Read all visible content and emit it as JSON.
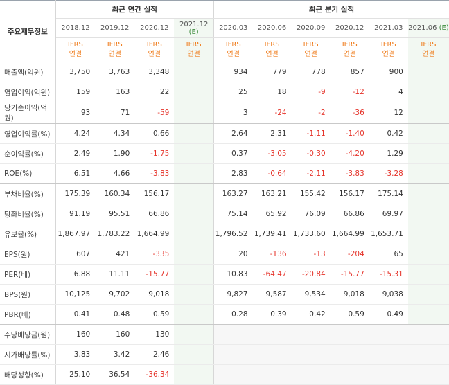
{
  "header": {
    "corner_label": "주요재무정보",
    "annual_title": "최근 연간 실적",
    "quarter_title": "최근 분기 실적",
    "annual_periods": [
      "2018.12",
      "2019.12",
      "2020.12"
    ],
    "annual_estimate": {
      "period": "2021.12",
      "mark": "(E)"
    },
    "quarter_periods": [
      "2020.03",
      "2020.06",
      "2020.09",
      "2020.12",
      "2021.03"
    ],
    "quarter_estimate": {
      "period": "2021.06",
      "mark": "(E)"
    },
    "basis_top": "IFRS",
    "basis_bottom": "연결"
  },
  "rows": [
    {
      "label": "매출액(억원)",
      "annual": [
        "3,750",
        "3,763",
        "3,348"
      ],
      "quarter": [
        "934",
        "779",
        "778",
        "857",
        "900"
      ]
    },
    {
      "label": "영업이익(억원)",
      "annual": [
        "159",
        "163",
        "22"
      ],
      "quarter": [
        "25",
        "18",
        "-9",
        "-12",
        "4"
      ]
    },
    {
      "label": "당기순이익(억원)",
      "annual": [
        "93",
        "71",
        "-59"
      ],
      "quarter": [
        "3",
        "-24",
        "-2",
        "-36",
        "12"
      ],
      "group_end": true
    },
    {
      "label": "영업이익률(%)",
      "annual": [
        "4.24",
        "4.34",
        "0.66"
      ],
      "quarter": [
        "2.64",
        "2.31",
        "-1.11",
        "-1.40",
        "0.42"
      ]
    },
    {
      "label": "순이익률(%)",
      "annual": [
        "2.49",
        "1.90",
        "-1.75"
      ],
      "quarter": [
        "0.37",
        "-3.05",
        "-0.30",
        "-4.20",
        "1.29"
      ]
    },
    {
      "label": "ROE(%)",
      "annual": [
        "6.51",
        "4.66",
        "-3.83"
      ],
      "quarter": [
        "2.83",
        "-0.64",
        "-2.11",
        "-3.83",
        "-3.28"
      ],
      "group_end": true
    },
    {
      "label": "부채비율(%)",
      "annual": [
        "175.39",
        "160.34",
        "156.17"
      ],
      "quarter": [
        "163.27",
        "163.21",
        "155.42",
        "156.17",
        "175.14"
      ]
    },
    {
      "label": "당좌비율(%)",
      "annual": [
        "91.19",
        "95.51",
        "66.86"
      ],
      "quarter": [
        "75.14",
        "65.92",
        "76.09",
        "66.86",
        "69.97"
      ]
    },
    {
      "label": "유보율(%)",
      "annual": [
        "1,867.97",
        "1,783.22",
        "1,664.99"
      ],
      "quarter": [
        "1,796.52",
        "1,739.41",
        "1,733.60",
        "1,664.99",
        "1,653.71"
      ],
      "group_end": true
    },
    {
      "label": "EPS(원)",
      "annual": [
        "607",
        "421",
        "-335"
      ],
      "quarter": [
        "20",
        "-136",
        "-13",
        "-204",
        "65"
      ]
    },
    {
      "label": "PER(배)",
      "annual": [
        "6.88",
        "11.11",
        "-15.77"
      ],
      "quarter": [
        "10.83",
        "-64.47",
        "-20.84",
        "-15.77",
        "-15.31"
      ]
    },
    {
      "label": "BPS(원)",
      "annual": [
        "10,125",
        "9,702",
        "9,018"
      ],
      "quarter": [
        "9,827",
        "9,587",
        "9,534",
        "9,018",
        "9,038"
      ]
    },
    {
      "label": "PBR(배)",
      "annual": [
        "0.41",
        "0.48",
        "0.59"
      ],
      "quarter": [
        "0.28",
        "0.39",
        "0.42",
        "0.59",
        "0.49"
      ],
      "group_end": true
    },
    {
      "label": "주당배당금(원)",
      "annual": [
        "160",
        "160",
        "130"
      ],
      "quarter": [
        "",
        "",
        "",
        "",
        "",
        ""
      ],
      "no_quarter": true
    },
    {
      "label": "시가배당률(%)",
      "annual": [
        "3.83",
        "3.42",
        "2.46"
      ],
      "quarter": [
        "",
        "",
        "",
        "",
        "",
        ""
      ],
      "no_quarter": true
    },
    {
      "label": "배당성향(%)",
      "annual": [
        "25.10",
        "36.54",
        "-36.34"
      ],
      "quarter": [
        "",
        "",
        "",
        "",
        "",
        ""
      ],
      "no_quarter": true
    }
  ]
}
